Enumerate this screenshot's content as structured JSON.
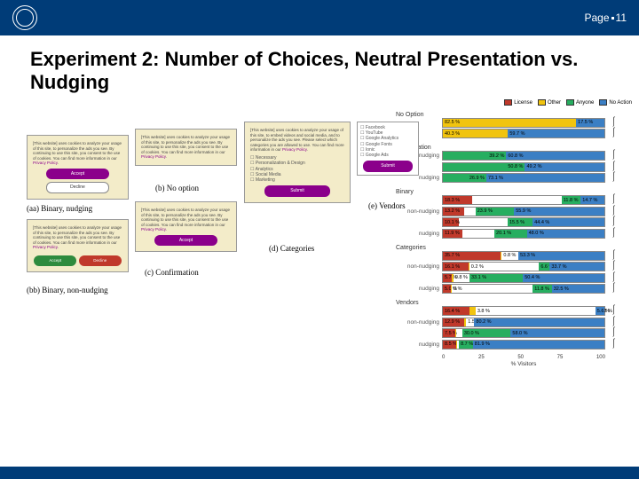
{
  "header": {
    "page_label": "Page",
    "page_number": "11"
  },
  "title": "Experiment 2: Number of Choices, Neutral Presentation vs. Nudging",
  "dialog_text": "[This website] uses cookies to analyze your usage of this site, to embed videos and social media, and to personalize the ads you see. Please select which categories you are allowed to use. You can find more information in our",
  "privacy_link": "Privacy Policy",
  "dialog_short": "[This website] uses cookies to analyze your usage of this site, to personalize the ads you see. By continuing to use this site, you consent to the use of cookies. You can find more information in our",
  "buttons": {
    "accept": "Accept",
    "decline": "Decline",
    "submit": "Submit"
  },
  "categories": [
    "Necessary",
    "Personalization & Design",
    "Analytics",
    "Social Media",
    "Marketing"
  ],
  "vendors": [
    "Facebook",
    "YouTube",
    "Google Analytics",
    "Google Fonts",
    "Ionic",
    "Google Ads"
  ],
  "captions": {
    "aa": "(aa) Binary, nudging",
    "b": "(b) No option",
    "bb": "(bb) Binary, non-nudging",
    "c": "(c) Confirmation",
    "d": "(d) Categories",
    "e": "(e) Vendors"
  },
  "legend": [
    {
      "label": "License",
      "color": "#c0392b"
    },
    {
      "label": "Other",
      "color": "#f1c40f"
    },
    {
      "label": "Anyone",
      "color": "#27ae60"
    },
    {
      "label": "No Action",
      "color": "#3b7fc4"
    }
  ],
  "chart_bg": "#ffffff",
  "chart_border": "#888888",
  "chart": [
    {
      "group": "No Option",
      "rows": [
        {
          "label": "",
          "segs": [
            {
              "v": 82.5,
              "c": "#f1c40f",
              "t": "82.5 %",
              "pos": "in"
            },
            {
              "v": 17.5,
              "c": "#3b7fc4",
              "t": "17.5 %",
              "pos": "in"
            }
          ]
        },
        {
          "label": "",
          "segs": [
            {
              "v": 40.3,
              "c": "#f1c40f",
              "t": "40.3 %",
              "pos": "in"
            },
            {
              "v": 59.7,
              "c": "#3b7fc4",
              "t": "59.7 %",
              "pos": "in"
            }
          ]
        }
      ]
    },
    {
      "group": "Confirmation",
      "rows": [
        {
          "label": "non-nudging",
          "segs": [
            {
              "v": 39.2,
              "c": "#27ae60",
              "t": "39.2 %",
              "pos": "r"
            },
            {
              "v": 60.8,
              "c": "#3b7fc4",
              "t": "60.8 %",
              "pos": "in"
            }
          ]
        },
        {
          "label": "",
          "segs": [
            {
              "v": 50.8,
              "c": "#27ae60",
              "t": "50.8 %",
              "pos": "r"
            },
            {
              "v": 49.2,
              "c": "#3b7fc4",
              "t": "49.2 %",
              "pos": "in"
            }
          ]
        },
        {
          "label": "nudging",
          "segs": [
            {
              "v": 26.9,
              "c": "#27ae60",
              "t": "26.9 %",
              "pos": "r"
            },
            {
              "v": 73.1,
              "c": "#3b7fc4",
              "t": "73.1 %",
              "pos": "in"
            }
          ]
        }
      ]
    },
    {
      "group": "Binary",
      "rows": [
        {
          "label": "",
          "segs": [
            {
              "v": 18.3,
              "c": "#c0392b",
              "t": "18.3 %",
              "pos": "in"
            },
            {
              "v": 55.2,
              "c": "gap"
            },
            {
              "v": 11.8,
              "c": "#27ae60",
              "t": "11.8 %",
              "pos": "in"
            },
            {
              "v": 14.7,
              "c": "#3b7fc4",
              "t": "14.7 %",
              "pos": "in"
            }
          ]
        },
        {
          "label": "non-nudging",
          "segs": [
            {
              "v": 13.2,
              "c": "#c0392b",
              "t": "13.2 %",
              "pos": "in"
            },
            {
              "v": 7,
              "c": "gap"
            },
            {
              "v": 23.9,
              "c": "#27ae60",
              "t": "23.9 %",
              "pos": "in"
            },
            {
              "v": 55.9,
              "c": "#3b7fc4",
              "t": "55.9 %",
              "pos": "in"
            }
          ]
        },
        {
          "label": "",
          "segs": [
            {
              "v": 10.1,
              "c": "#c0392b",
              "t": "10.1 %",
              "pos": "in"
            },
            {
              "v": 30,
              "c": "gap"
            },
            {
              "v": 15.5,
              "c": "#27ae60",
              "t": "15.5 %",
              "pos": "in"
            },
            {
              "v": 44.4,
              "c": "#3b7fc4",
              "t": "44.4 %",
              "pos": "in"
            }
          ]
        },
        {
          "label": "nudging",
          "segs": [
            {
              "v": 11.9,
              "c": "#c0392b",
              "t": "11.9 %",
              "pos": "in"
            },
            {
              "v": 20,
              "c": "gap"
            },
            {
              "v": 20.1,
              "c": "#27ae60",
              "t": "20.1 %",
              "pos": "in"
            },
            {
              "v": 48.0,
              "c": "#3b7fc4",
              "t": "48.0 %",
              "pos": "in"
            }
          ]
        }
      ]
    },
    {
      "group": "Categories",
      "rows": [
        {
          "label": "",
          "segs": [
            {
              "v": 35.7,
              "c": "#c0392b",
              "t": "35.7 %",
              "pos": "in"
            },
            {
              "v": 0.8,
              "c": "#f1c40f",
              "t": "0.8 %",
              "pos": "out"
            },
            {
              "v": 10.2,
              "c": "gap"
            },
            {
              "v": 0.1,
              "c": "#27ae60",
              "t": "0.1 %",
              "pos": "out"
            },
            {
              "v": 53.3,
              "c": "#3b7fc4",
              "t": "53.3 %",
              "pos": "in"
            }
          ]
        },
        {
          "label": "non-nudging",
          "segs": [
            {
              "v": 16.1,
              "c": "#c0392b",
              "t": "16.1 %",
              "pos": "in"
            },
            {
              "v": 0.2,
              "c": "#f1c40f",
              "t": "0.2 %",
              "pos": "out"
            },
            {
              "v": 43,
              "c": "gap"
            },
            {
              "v": 6.6,
              "c": "#27ae60",
              "t": "6.6 %",
              "pos": "in"
            },
            {
              "v": 33.7,
              "c": "#3b7fc4",
              "t": "33.7 %",
              "pos": "in"
            }
          ]
        },
        {
          "label": "",
          "segs": [
            {
              "v": 5.7,
              "c": "#c0392b",
              "t": "5.7 %",
              "pos": "in"
            },
            {
              "v": 0.8,
              "c": "#f1c40f",
              "t": "0.8 %",
              "pos": "out"
            },
            {
              "v": 10,
              "c": "gap"
            },
            {
              "v": 33.1,
              "c": "#27ae60",
              "t": "33.1 %",
              "pos": "in"
            },
            {
              "v": 50.4,
              "c": "#3b7fc4",
              "t": "50.4 %",
              "pos": "in"
            }
          ]
        },
        {
          "label": "nudging",
          "segs": [
            {
              "v": 5.0,
              "c": "#c0392b",
              "t": "5.0 %",
              "pos": "in"
            },
            {
              "v": 0.5,
              "c": "#f1c40f",
              "t": "0 %",
              "pos": "out"
            },
            {
              "v": 50,
              "c": "gap"
            },
            {
              "v": 11.8,
              "c": "#27ae60",
              "t": "11.8 %",
              "pos": "in"
            },
            {
              "v": 32.5,
              "c": "#3b7fc4",
              "t": "32.5 %",
              "pos": "in"
            }
          ]
        }
      ]
    },
    {
      "group": "Vendors",
      "rows": [
        {
          "label": "",
          "segs": [
            {
              "v": 16.4,
              "c": "#c0392b",
              "t": "16.4 %",
              "pos": "in"
            },
            {
              "v": 3.8,
              "c": "#f1c40f",
              "t": "3.8 %",
              "pos": "out"
            },
            {
              "v": 74,
              "c": "gap"
            },
            {
              "v": 0.03,
              "c": "#27ae60",
              "t": "0.03 %",
              "pos": "out"
            },
            {
              "v": 5.6,
              "c": "#3b7fc4",
              "t": "5.6 %",
              "pos": "in"
            }
          ]
        },
        {
          "label": "non-nudging",
          "segs": [
            {
              "v": 12.9,
              "c": "#c0392b",
              "t": "12.9 %",
              "pos": "in"
            },
            {
              "v": 1.5,
              "c": "#f1c40f",
              "t": "1.5 %",
              "pos": "out"
            },
            {
              "v": 5,
              "c": "gap"
            },
            {
              "v": 0.0,
              "c": "#27ae60",
              "t": "0.0 %",
              "pos": "out"
            },
            {
              "v": 80.2,
              "c": "#3b7fc4",
              "t": "80.2 %",
              "pos": "in"
            }
          ]
        },
        {
          "label": "",
          "segs": [
            {
              "v": 7.5,
              "c": "#c0392b",
              "t": "7.5 %",
              "pos": "in"
            },
            {
              "v": 0.5,
              "c": "#f1c40f"
            },
            {
              "v": 4,
              "c": "gap"
            },
            {
              "v": 30.0,
              "c": "#27ae60",
              "t": "30.0 %",
              "pos": "in"
            },
            {
              "v": 58.0,
              "c": "#3b7fc4",
              "t": "58.0 %",
              "pos": "in"
            }
          ]
        },
        {
          "label": "nudging",
          "segs": [
            {
              "v": 8.5,
              "c": "#c0392b",
              "t": "8.5 %",
              "pos": "in"
            },
            {
              "v": 0.5,
              "c": "#f1c40f",
              "t": "0 %",
              "pos": "out"
            },
            {
              "v": 1,
              "c": "gap"
            },
            {
              "v": 8.7,
              "c": "#27ae60",
              "t": "8.7 %",
              "pos": "in"
            },
            {
              "v": 81.9,
              "c": "#3b7fc4",
              "t": "81.9 %",
              "pos": "in"
            }
          ]
        }
      ]
    }
  ],
  "axis": {
    "ticks": [
      "0",
      "25",
      "50",
      "75",
      "100"
    ],
    "label": "% Visitors"
  }
}
